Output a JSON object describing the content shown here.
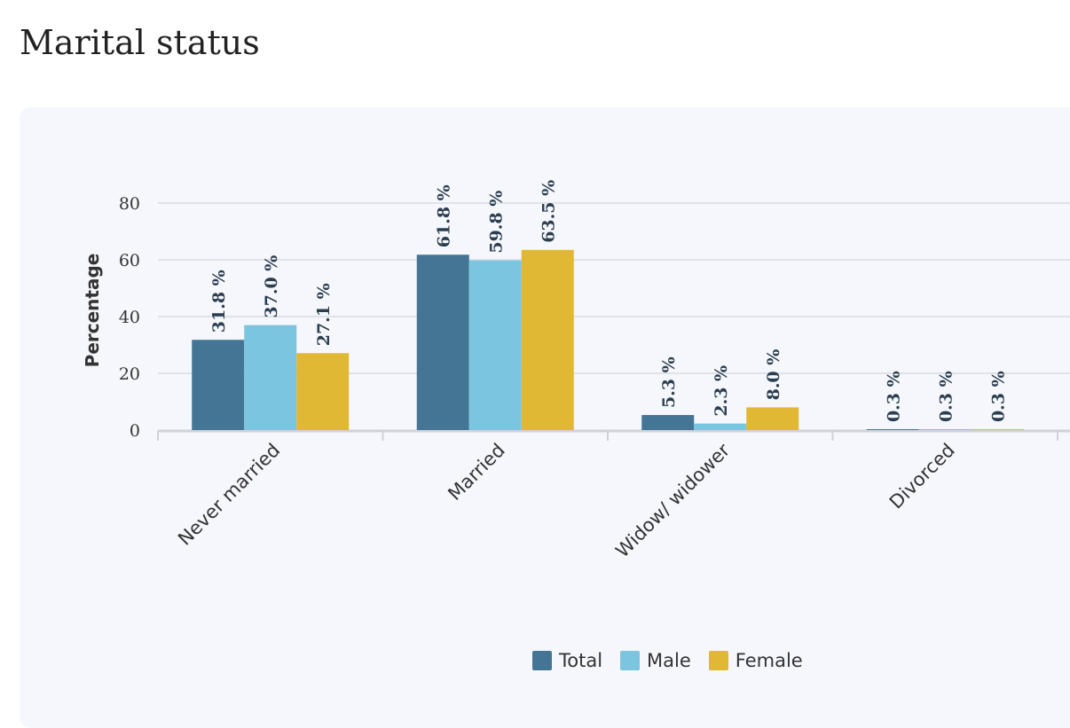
{
  "page": {
    "title": "Marital status"
  },
  "chart_data": {
    "type": "bar",
    "title": "Marital status",
    "xlabel": "",
    "ylabel": "Percentage",
    "ylim": [
      0,
      80
    ],
    "yticks": [
      0,
      20,
      40,
      60,
      80
    ],
    "grid": true,
    "legend_position": "bottom",
    "value_suffix": " %",
    "categories": [
      "Never married",
      "Married",
      "Widow/ widower",
      "Divorced"
    ],
    "series": [
      {
        "name": "Total",
        "color": "#447594",
        "values": [
          31.8,
          61.8,
          5.3,
          0.3
        ]
      },
      {
        "name": "Male",
        "color": "#7bc5e0",
        "values": [
          37.0,
          59.8,
          2.3,
          0.3
        ]
      },
      {
        "name": "Female",
        "color": "#e0b834",
        "values": [
          27.1,
          63.5,
          8.0,
          0.3
        ]
      }
    ]
  }
}
